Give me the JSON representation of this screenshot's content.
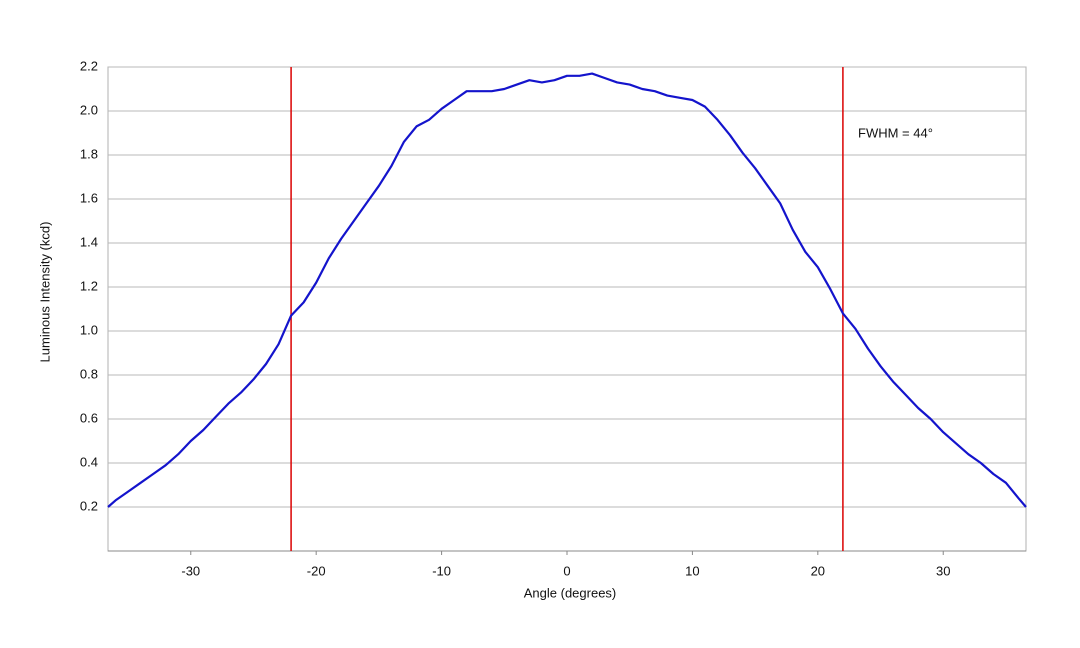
{
  "chart_data": {
    "type": "line",
    "xlabel": "Angle (degrees)",
    "ylabel": "Luminous Intensity (kcd)",
    "x": [
      -36.6,
      -36,
      -35,
      -34,
      -33,
      -32,
      -31,
      -30,
      -29,
      -28,
      -27,
      -26,
      -25,
      -24,
      -23,
      -22,
      -21,
      -20,
      -19,
      -18,
      -17,
      -16,
      -15,
      -14,
      -13,
      -12,
      -11,
      -10,
      -9,
      -8,
      -7,
      -6,
      -5,
      -4,
      -3,
      -2,
      -1,
      0,
      1,
      2,
      3,
      4,
      5,
      6,
      7,
      8,
      9,
      10,
      11,
      12,
      13,
      14,
      15,
      16,
      17,
      18,
      19,
      20,
      21,
      22,
      23,
      24,
      25,
      26,
      27,
      28,
      29,
      30,
      31,
      32,
      33,
      34,
      35,
      36,
      36.6
    ],
    "series": [
      {
        "color": "#1414cc",
        "values": [
          0.2,
          0.23,
          0.27,
          0.31,
          0.35,
          0.39,
          0.44,
          0.5,
          0.55,
          0.61,
          0.67,
          0.72,
          0.78,
          0.85,
          0.94,
          1.07,
          1.13,
          1.22,
          1.33,
          1.42,
          1.5,
          1.58,
          1.66,
          1.75,
          1.86,
          1.93,
          1.96,
          2.01,
          2.05,
          2.09,
          2.09,
          2.09,
          2.1,
          2.12,
          2.14,
          2.13,
          2.14,
          2.16,
          2.16,
          2.17,
          2.15,
          2.13,
          2.12,
          2.1,
          2.09,
          2.07,
          2.06,
          2.05,
          2.02,
          1.96,
          1.89,
          1.81,
          1.74,
          1.66,
          1.58,
          1.46,
          1.36,
          1.29,
          1.19,
          1.08,
          1.01,
          0.92,
          0.84,
          0.77,
          0.71,
          0.65,
          0.6,
          0.54,
          0.49,
          0.44,
          0.4,
          0.35,
          0.31,
          0.24,
          0.2
        ]
      }
    ],
    "xlim": [
      -36.6,
      36.6
    ],
    "xticks": [
      -30,
      -20,
      -10,
      0,
      10,
      20,
      30
    ],
    "ylim": [
      0,
      2.2
    ],
    "yticks": [
      0.2,
      0.4,
      0.6,
      0.8,
      {
        "value": 1,
        "label": "1.0"
      },
      1.2,
      1.4,
      1.6,
      1.8,
      {
        "value": 2,
        "label": "2.0"
      },
      2.2
    ],
    "grid": true,
    "vlines": [
      {
        "x": -22,
        "color": "#dd1111"
      },
      {
        "x": 22,
        "color": "#dd1111"
      }
    ],
    "annotation": "FWHM = 44°"
  }
}
